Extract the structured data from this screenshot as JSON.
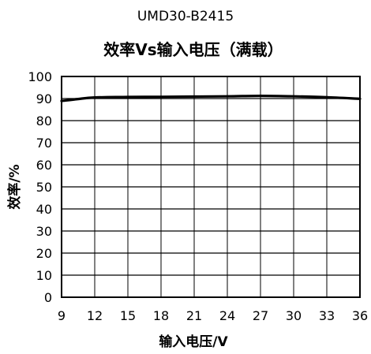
{
  "model": "UMD30-B2415",
  "chart_data": {
    "type": "line",
    "title": "效率Vs输入电压（满载）",
    "xlabel": "输入电压/V",
    "ylabel": "效率/%",
    "x_ticks": [
      9,
      12,
      15,
      18,
      21,
      24,
      27,
      30,
      33,
      36
    ],
    "y_ticks": [
      0,
      10,
      20,
      30,
      40,
      50,
      60,
      70,
      80,
      90,
      100
    ],
    "xlim": [
      9,
      36
    ],
    "ylim": [
      0,
      100
    ],
    "grid": true,
    "legend": "none",
    "series": [
      {
        "x": [
          9,
          10.5,
          12,
          15,
          18,
          21,
          24,
          27,
          30,
          33,
          36
        ],
        "y": [
          88.9,
          89.8,
          90.5,
          90.7,
          90.8,
          90.9,
          91.0,
          91.2,
          91.0,
          90.6,
          89.9
        ],
        "color": "#000000"
      }
    ]
  }
}
